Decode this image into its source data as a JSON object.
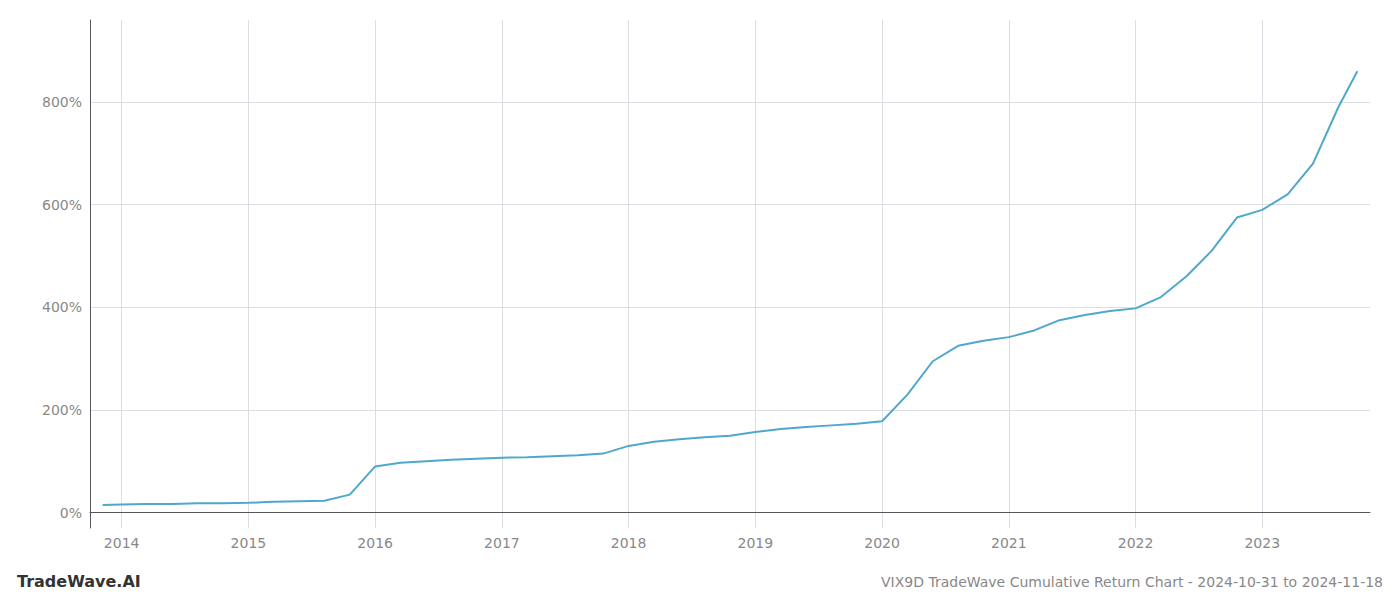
{
  "chart_data": {
    "type": "line",
    "title": "VIX9D TradeWave Cumulative Return Chart - 2024-10-31 to 2024-11-18",
    "annotations": [
      "TradeWave.AI"
    ],
    "color": "#4fa8cc",
    "x": [
      2013.85,
      2014.0,
      2014.2,
      2014.4,
      2014.6,
      2014.8,
      2015.0,
      2015.1,
      2015.2,
      2015.4,
      2015.6,
      2015.8,
      2016.0,
      2016.2,
      2016.4,
      2016.6,
      2016.8,
      2017.0,
      2017.2,
      2017.4,
      2017.6,
      2017.8,
      2018.0,
      2018.2,
      2018.4,
      2018.6,
      2018.8,
      2019.0,
      2019.2,
      2019.4,
      2019.6,
      2019.8,
      2020.0,
      2020.2,
      2020.4,
      2020.6,
      2020.8,
      2021.0,
      2021.2,
      2021.4,
      2021.6,
      2021.8,
      2022.0,
      2022.2,
      2022.4,
      2022.6,
      2022.8,
      2023.0,
      2023.2,
      2023.4,
      2023.6,
      2023.75
    ],
    "values": [
      15,
      16,
      17,
      17,
      18,
      18,
      19,
      20,
      21,
      22,
      23,
      35,
      90,
      97,
      100,
      103,
      105,
      107,
      108,
      110,
      112,
      115,
      130,
      138,
      143,
      147,
      150,
      157,
      163,
      167,
      170,
      173,
      178,
      230,
      295,
      325,
      335,
      342,
      355,
      375,
      385,
      393,
      398,
      420,
      460,
      510,
      575,
      590,
      620,
      680,
      790,
      860
    ],
    "xlim": [
      2013.75,
      2023.85
    ],
    "xticks": [
      2014,
      2015,
      2016,
      2017,
      2018,
      2019,
      2020,
      2021,
      2022,
      2023
    ],
    "ylim": [
      -30,
      960
    ],
    "yticks": [
      {
        "value": 0,
        "label": "0%"
      },
      {
        "value": 200,
        "label": "200%"
      },
      {
        "value": 400,
        "label": "400%"
      },
      {
        "value": 600,
        "label": "600%"
      },
      {
        "value": 800,
        "label": "800%"
      }
    ],
    "grid": true
  }
}
